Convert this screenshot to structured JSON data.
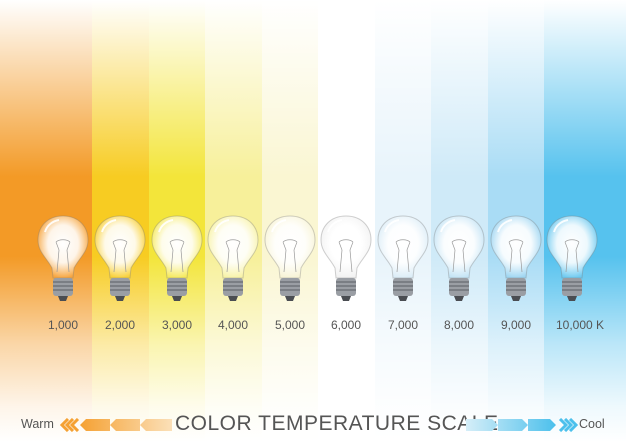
{
  "scale": {
    "title": "COLOR TEMPERATURE SCALE",
    "warm_label": "Warm",
    "cool_label": "Cool",
    "warm_color": "#f5a133",
    "cool_color": "#4cc0ec"
  },
  "bulbs": [
    {
      "label": "1,000",
      "color": "#f39a26",
      "glass": "#f7a640"
    },
    {
      "label": "2,000",
      "color": "#f7cc22",
      "glass": "#f9d13a"
    },
    {
      "label": "3,000",
      "color": "#f3e53a",
      "glass": "#f6ea5e"
    },
    {
      "label": "4,000",
      "color": "#f7f09a",
      "glass": "#f8f3a8"
    },
    {
      "label": "5,000",
      "color": "#faf6d2",
      "glass": "#f8f4d6"
    },
    {
      "label": "6,000",
      "color": "#ffffff",
      "glass": "#f2f2f2"
    },
    {
      "label": "7,000",
      "color": "#e8f4fb",
      "glass": "#dcedf7"
    },
    {
      "label": "8,000",
      "color": "#cfeaf8",
      "glass": "#c4e4f5"
    },
    {
      "label": "9,000",
      "color": "#a9dcf5",
      "glass": "#9fd6f2"
    },
    {
      "label": "10,000 K",
      "color": "#56c2ee",
      "glass": "#6fcaf0"
    }
  ]
}
